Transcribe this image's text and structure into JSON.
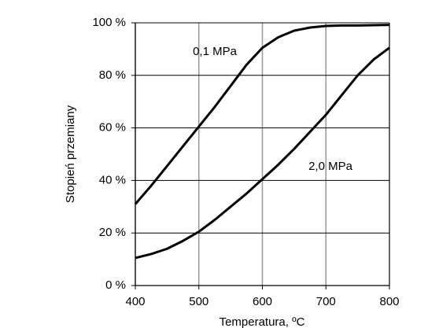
{
  "chart_data": {
    "type": "line",
    "x_label": "Temperatura, ºC",
    "y_label": "Stopień przemiany",
    "x": [
      400,
      425,
      450,
      475,
      500,
      525,
      550,
      575,
      600,
      625,
      650,
      675,
      700,
      725,
      750,
      775,
      800
    ],
    "series": [
      {
        "name": "0,1 MPa",
        "color": "#000000",
        "values": [
          31,
          38,
          45.5,
          53,
          60.5,
          68,
          76,
          84,
          90.5,
          94.5,
          97,
          98.2,
          98.8,
          99,
          99,
          99.1,
          99.2
        ]
      },
      {
        "name": "2,0 MPa",
        "color": "#000000",
        "values": [
          10.5,
          12,
          14,
          17,
          20.5,
          25,
          30,
          35,
          40.5,
          46,
          52,
          58.5,
          65,
          72.5,
          80,
          86,
          90.5
        ]
      }
    ],
    "xlim": [
      400,
      800
    ],
    "xticks": [
      400,
      500,
      600,
      700,
      800
    ],
    "ylim": [
      0,
      100
    ],
    "yticks": [
      {
        "value": 0,
        "label": "0 %"
      },
      {
        "value": 20,
        "label": "20 %"
      },
      {
        "value": 40,
        "label": "40 %"
      },
      {
        "value": 60,
        "label": "60 %"
      },
      {
        "value": 80,
        "label": "80 %"
      },
      {
        "value": 100,
        "label": "100 %"
      }
    ],
    "grid": true
  }
}
